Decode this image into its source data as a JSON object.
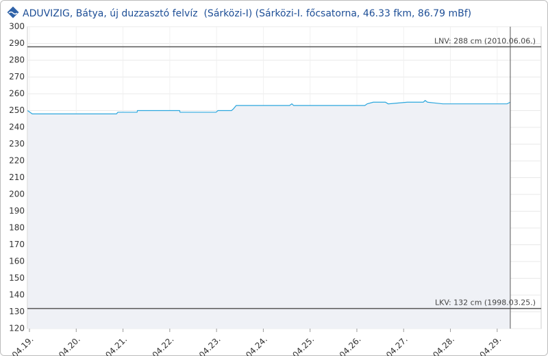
{
  "chart_data": {
    "type": "line",
    "title": "ADUVIZIG, Bátya, új duzzasztó felvíz  (Sárközi-I) (Sárközi-I. főcsatorna, 46.33 fkm, 86.79 mBf)",
    "x": [
      18.96,
      19.06,
      20.86,
      20.89,
      21.3,
      21.31,
      22.21,
      22.22,
      22.99,
      23.03,
      23.32,
      23.36,
      23.42,
      24.56,
      24.61,
      24.65,
      26.17,
      26.22,
      26.35,
      26.61,
      26.67,
      27.08,
      27.42,
      27.46,
      27.51,
      27.84,
      29.21,
      29.28
    ],
    "series": [
      {
        "color": "#2aa6dd",
        "area_color": "#eff1f6",
        "values": [
          250,
          248,
          248,
          249,
          249,
          250,
          250,
          249,
          249,
          250,
          250,
          251,
          253,
          253,
          254,
          253,
          253,
          254,
          255,
          255,
          254,
          255,
          255,
          256,
          255,
          254,
          254,
          255
        ]
      }
    ],
    "xlim": [
      18.956,
      29.94
    ],
    "xticks": [
      {
        "value": 19,
        "label": "04.19."
      },
      {
        "value": 20,
        "label": "04.20."
      },
      {
        "value": 21,
        "label": "04.21."
      },
      {
        "value": 22,
        "label": "04.22."
      },
      {
        "value": 23,
        "label": "04.23."
      },
      {
        "value": 24,
        "label": "04.24."
      },
      {
        "value": 25,
        "label": "04.25."
      },
      {
        "value": 26,
        "label": "04.26."
      },
      {
        "value": 27,
        "label": "04.27."
      },
      {
        "value": 28,
        "label": "04.28."
      },
      {
        "value": 29,
        "label": "04.29."
      }
    ],
    "ylim": [
      120,
      300
    ],
    "yticks": [
      120,
      130,
      140,
      150,
      160,
      170,
      180,
      190,
      200,
      210,
      220,
      230,
      240,
      250,
      260,
      270,
      280,
      290,
      300
    ],
    "grid": true,
    "reference_lines": [
      {
        "value": 288,
        "label": "LNV: 288 cm (2010.06.06.)"
      },
      {
        "value": 132,
        "label": "LKV: 132 cm (1998.03.25.)"
      }
    ]
  }
}
